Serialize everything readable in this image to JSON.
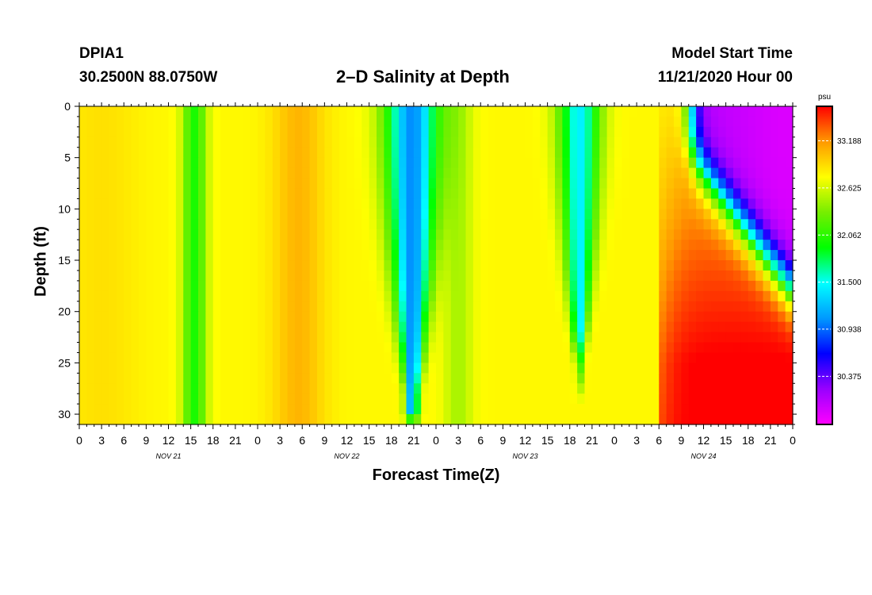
{
  "header": {
    "station": "DPIA1",
    "coords": "30.2500N 88.0750W",
    "title": "2–D Salinity at Depth",
    "model_start_label": "Model Start Time",
    "model_start_value": "11/21/2020 Hour 00"
  },
  "chart_data": {
    "type": "heatmap",
    "title": "2–D Salinity at Depth",
    "xlabel": "Forecast Time(Z)",
    "ylabel": "Depth (ft)",
    "x_unit": "hours from model start",
    "xlim": [
      0,
      96
    ],
    "ylim": [
      31,
      0
    ],
    "y_reversed": true,
    "x_tick_labels": [
      "0",
      "3",
      "6",
      "9",
      "12",
      "15",
      "18",
      "21",
      "0",
      "3",
      "6",
      "9",
      "12",
      "15",
      "18",
      "21",
      "0",
      "3",
      "6",
      "9",
      "12",
      "15",
      "18",
      "21",
      "0",
      "3",
      "6",
      "9",
      "12",
      "15",
      "18",
      "21",
      "0"
    ],
    "x_ticks": [
      0,
      3,
      6,
      9,
      12,
      15,
      18,
      21,
      24,
      27,
      30,
      33,
      36,
      39,
      42,
      45,
      48,
      51,
      54,
      57,
      60,
      63,
      66,
      69,
      72,
      75,
      78,
      81,
      84,
      87,
      90,
      93,
      96
    ],
    "date_labels": [
      {
        "text": "NOV 21",
        "x": 12
      },
      {
        "text": "NOV 22",
        "x": 36
      },
      {
        "text": "NOV 23",
        "x": 60
      },
      {
        "text": "NOV 24",
        "x": 84
      }
    ],
    "y_ticks": [
      0,
      5,
      10,
      15,
      20,
      25,
      30
    ],
    "colorbar": {
      "unit": "psu",
      "min": 29.8,
      "max": 33.6,
      "tick_values": [
        33.188,
        32.625,
        32.062,
        31.5,
        30.938,
        30.375
      ],
      "tick_labels": [
        "33.188",
        "32.625",
        "32.062",
        "31.500",
        "30.938",
        "30.375"
      ],
      "colors": [
        "#ff00ff",
        "#9900ff",
        "#0000ff",
        "#0099ff",
        "#00ffff",
        "#00ff00",
        "#77ee00",
        "#ffff00",
        "#ff9900",
        "#ff0000"
      ]
    },
    "grid_rows": 31,
    "grid_cols": 96,
    "features_note": "fresh columns near 15Z Nov21, 19-21Z Nov22 (deep), 18Z Nov23; saline surge bottom-right Nov24"
  }
}
